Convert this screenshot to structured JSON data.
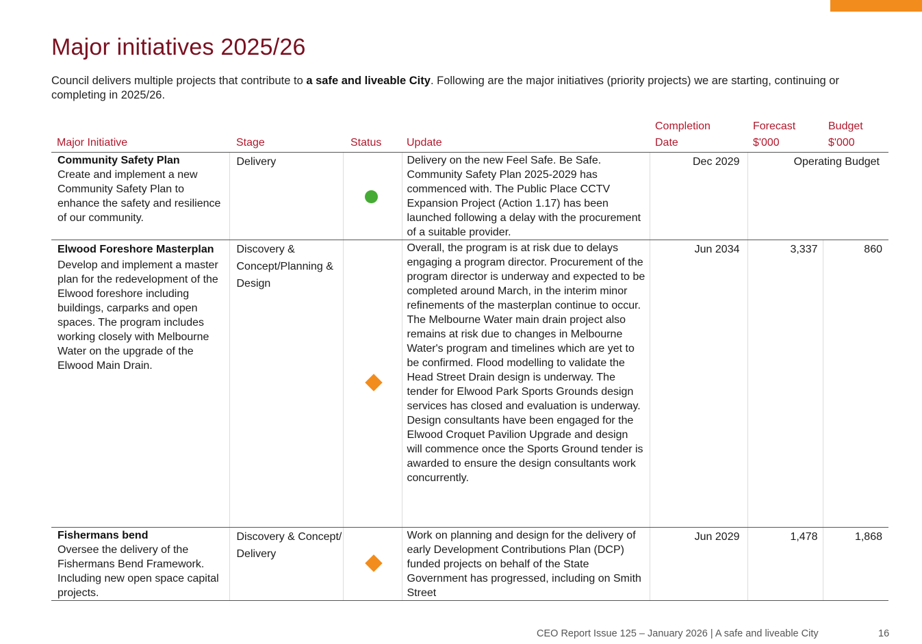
{
  "page": {
    "title": "Major initiatives 2025/26",
    "intro_pre": "Council delivers multiple projects that contribute to ",
    "intro_bold": "a safe and liveable City",
    "intro_post": ". Following are the major initiatives (priority projects) we are starting, continuing or completing in 2025/26.",
    "accent_color": "#f28c1c",
    "title_color": "#7a1020"
  },
  "table": {
    "headers": {
      "initiative": "Major Initiative",
      "stage": "Stage",
      "status": "Status",
      "update": "Update",
      "completion_line1": "Completion",
      "completion_line2": "Date",
      "forecast_line1": "Forecast",
      "forecast_line2": "$'000",
      "budget_line1": "Budget",
      "budget_line2": "$'000"
    },
    "rows": [
      {
        "title": "Community Safety Plan",
        "description": "Create and implement a new Community Safety Plan to enhance the safety and resilience of our community.",
        "stage": "Delivery",
        "status": "on-track",
        "status_icon": "green-circle-icon",
        "status_color": "#45ab34",
        "update": "Delivery on the new Feel Safe. Be Safe. Community Safety Plan 2025-2029 has commenced with. The Public Place CCTV Expansion Project (Action 1.17) has been launched following a delay with the procurement of a suitable provider.",
        "completion": "Dec 2029",
        "forecast_budget": "Operating Budget"
      },
      {
        "title": "Elwood Foreshore Masterplan",
        "description": "Develop and implement a master plan for the redevelopment of the Elwood foreshore including buildings, carparks and open spaces. The program includes working closely with Melbourne Water on the upgrade of the Elwood Main Drain.",
        "stage": "Discovery & Concept/Planning & Design",
        "status": "at-risk",
        "status_icon": "orange-diamond-icon",
        "status_color": "#f28c1c",
        "update": "Overall, the program is at risk due to delays engaging a program director. Procurement of the program director is underway and expected to be completed around March, in the interim minor refinements of the masterplan continue to occur. The Melbourne Water main drain project also remains at risk due to changes in Melbourne Water's program and timelines which are yet to be confirmed. Flood modelling to validate the Head Street Drain design is underway. The tender for Elwood Park Sports Grounds design services has closed and evaluation is underway. Design consultants have been engaged for the Elwood Croquet Pavilion Upgrade and design will commence once the Sports Ground tender is awarded to ensure the design consultants work concurrently.",
        "completion": "Jun 2034",
        "forecast": "3,337",
        "budget": "860"
      },
      {
        "title": "Fishermans bend",
        "description": "Oversee the delivery of the Fishermans Bend Framework. Including new open space capital projects.",
        "stage": "Discovery & Concept/ Delivery",
        "status": "at-risk",
        "status_icon": "orange-diamond-icon",
        "status_color": "#f28c1c",
        "update": "Work on planning and design for the delivery of early Development Contributions Plan (DCP) funded projects on behalf of the State Government has progressed, including on Smith Street",
        "completion": "Jun 2029",
        "forecast": "1,478",
        "budget": "1,868"
      }
    ]
  },
  "footer": {
    "text": "CEO Report Issue 125 – January 2026 | A safe and liveable City",
    "page_number": "16"
  }
}
